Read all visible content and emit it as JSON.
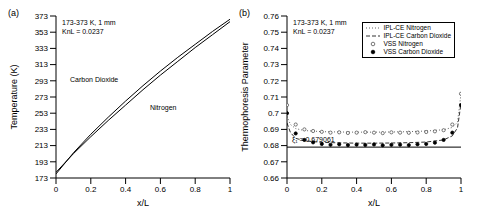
{
  "chart_data": [
    {
      "type": "line",
      "panel_label": "(a)",
      "annotations": [
        "173-373 K, 1 mm",
        "KnL = 0.0237"
      ],
      "x_label": "x/L",
      "y_label": "Temperature (K)",
      "xlim": [
        0,
        1
      ],
      "xticks": [
        0,
        0.2,
        0.4,
        0.6,
        0.8,
        1
      ],
      "ylim": [
        173,
        373
      ],
      "yticks": [
        173,
        193,
        213,
        233,
        253,
        273,
        293,
        313,
        333,
        353,
        373
      ],
      "series": [
        {
          "name": "Carbon Dioxide",
          "color": "#000000",
          "line_style": "solid",
          "x": [
            0,
            0.1,
            0.2,
            0.3,
            0.4,
            0.5,
            0.6,
            0.7,
            0.8,
            0.9,
            1
          ],
          "values": [
            178,
            204,
            227,
            248,
            268,
            287,
            305,
            322,
            338,
            354,
            369
          ]
        },
        {
          "name": "Nitrogen",
          "color": "#000000",
          "line_style": "solid",
          "x": [
            0,
            0.1,
            0.2,
            0.3,
            0.4,
            0.5,
            0.6,
            0.7,
            0.8,
            0.9,
            1
          ],
          "values": [
            180,
            203,
            224,
            244,
            263,
            282,
            300,
            317,
            334,
            350,
            366
          ]
        }
      ]
    },
    {
      "type": "line",
      "panel_label": "(b)",
      "annotations": [
        "173-373 K, 1 mm",
        "KnL = 0.0237"
      ],
      "x_label": "x/L",
      "y_label": "Thermophoresis Parameter",
      "xlim": [
        0,
        1
      ],
      "xticks": [
        0,
        0.2,
        0.4,
        0.6,
        0.8,
        1
      ],
      "ylim": [
        0.66,
        0.76
      ],
      "yticks": [
        0.66,
        0.67,
        0.68,
        0.69,
        0.7,
        0.71,
        0.72,
        0.73,
        0.74,
        0.75,
        0.76
      ],
      "legend": "upper right",
      "reference": {
        "value": 0.679061,
        "label": "ξ₁ = 0.679061",
        "color": "#000000"
      },
      "series": [
        {
          "name": "IPL-CE Nitrogen",
          "color": "#666666",
          "line_style": "dotted",
          "x": [
            0,
            0.02,
            0.05,
            0.1,
            0.2,
            0.3,
            0.4,
            0.5,
            0.6,
            0.7,
            0.8,
            0.9,
            0.95,
            0.98,
            1
          ],
          "values": [
            0.698,
            0.693,
            0.6905,
            0.6893,
            0.6886,
            0.6884,
            0.6883,
            0.6883,
            0.6884,
            0.6886,
            0.689,
            0.6898,
            0.6912,
            0.6945,
            0.712
          ]
        },
        {
          "name": "IPL-CE Carbon Dioxide",
          "color": "#333333",
          "line_style": "dashed",
          "x": [
            0,
            0.02,
            0.05,
            0.1,
            0.2,
            0.3,
            0.4,
            0.5,
            0.6,
            0.7,
            0.8,
            0.9,
            0.95,
            0.98,
            1
          ],
          "values": [
            0.694,
            0.688,
            0.6845,
            0.683,
            0.682,
            0.6817,
            0.6815,
            0.6815,
            0.6816,
            0.6818,
            0.6822,
            0.6835,
            0.686,
            0.691,
            0.706
          ]
        },
        {
          "name": "VSS Nitrogen",
          "color": "#555555",
          "marker": "open_circle",
          "x": [
            0,
            0.05,
            0.1,
            0.15,
            0.2,
            0.25,
            0.3,
            0.35,
            0.4,
            0.45,
            0.5,
            0.55,
            0.6,
            0.65,
            0.7,
            0.75,
            0.8,
            0.85,
            0.9,
            0.95,
            1
          ],
          "values": [
            0.705,
            0.693,
            0.69,
            0.689,
            0.6885,
            0.688,
            0.6882,
            0.6878,
            0.688,
            0.6883,
            0.688,
            0.6877,
            0.6882,
            0.688,
            0.6879,
            0.6881,
            0.6884,
            0.6888,
            0.6895,
            0.693,
            0.712
          ]
        },
        {
          "name": "VSS Carbon Dioxide",
          "color": "#000000",
          "marker": "circle",
          "x": [
            0,
            0.05,
            0.1,
            0.15,
            0.2,
            0.25,
            0.3,
            0.35,
            0.4,
            0.45,
            0.5,
            0.55,
            0.6,
            0.65,
            0.7,
            0.75,
            0.8,
            0.85,
            0.9,
            0.95,
            1
          ],
          "values": [
            0.7,
            0.6875,
            0.6835,
            0.682,
            0.681,
            0.6805,
            0.6808,
            0.6803,
            0.6806,
            0.6804,
            0.6807,
            0.6802,
            0.6805,
            0.6806,
            0.6803,
            0.6808,
            0.681,
            0.6818,
            0.6835,
            0.688,
            0.705
          ]
        }
      ]
    }
  ]
}
